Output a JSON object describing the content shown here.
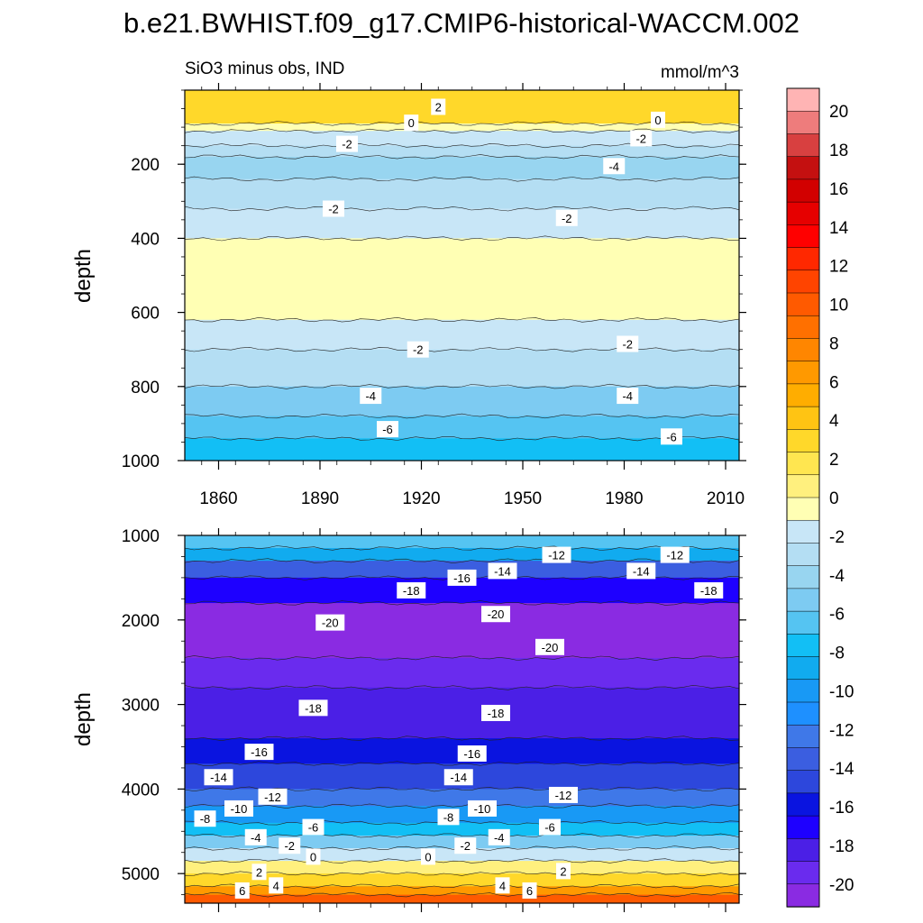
{
  "chart_data": {
    "type": "contour",
    "title": "b.e21.BWHIST.f09_g17.CMIP6-historical-WACCM.002",
    "subtitle_left": "SiO3 minus obs, IND",
    "subtitle_right": "mmol/m^3",
    "x": {
      "range": [
        1850,
        2014
      ],
      "tick_values": [
        1860,
        1890,
        1920,
        1950,
        1980,
        2010
      ],
      "tick_labels": [
        "1860",
        "1890",
        "1920",
        "1950",
        "1980",
        "2010"
      ]
    },
    "colorbar": {
      "levels": [
        -20,
        -18,
        -16,
        -14,
        -12,
        -10,
        -8,
        -6,
        -4,
        -2,
        0,
        2,
        4,
        6,
        8,
        10,
        12,
        14,
        16,
        18,
        20
      ],
      "labels": [
        "20",
        "18",
        "16",
        "14",
        "12",
        "10",
        "8",
        "6",
        "4",
        "2",
        "0",
        "-2",
        "-4",
        "-6",
        "-8",
        "-10",
        "-12",
        "-14",
        "-16",
        "-18",
        "-20"
      ],
      "colors": [
        "#8A2BE2",
        "#6A2BEE",
        "#4B1FE6",
        "#1E00FF",
        "#0A14E0",
        "#2D47DC",
        "#3B5EE0",
        "#3F78E8",
        "#1E90FF",
        "#1899F5",
        "#11ABEF",
        "#12BFF5",
        "#55C4F2",
        "#7DCBF2",
        "#98D5F0",
        "#B4DEF3",
        "#C8E6F7",
        "#FFFFB4",
        "#FFF07E",
        "#FFE650",
        "#FFD82A",
        "#FFC413",
        "#FFAD00",
        "#FF9900",
        "#FF8600",
        "#FF7000",
        "#FF5A00",
        "#FF4400",
        "#FF2800",
        "#FF0000",
        "#E60000",
        "#D20000",
        "#C41010",
        "#D84040",
        "#EE7C7C",
        "#FFB4B4"
      ]
    },
    "panels": [
      {
        "ylabel": "depth",
        "y_range": [
          0,
          1000
        ],
        "tick_values": [
          200,
          400,
          600,
          800,
          1000
        ],
        "tick_labels": [
          "200",
          "400",
          "600",
          "800",
          "1000"
        ],
        "bands": [
          {
            "top": 0,
            "bottom": 90,
            "value": 3
          },
          {
            "top": 90,
            "bottom": 110,
            "value": -0.5
          },
          {
            "top": 110,
            "bottom": 150,
            "value": -1.5
          },
          {
            "top": 150,
            "bottom": 180,
            "value": -2.5
          },
          {
            "top": 180,
            "bottom": 240,
            "value": -3.5
          },
          {
            "top": 240,
            "bottom": 320,
            "value": -2.5
          },
          {
            "top": 320,
            "bottom": 400,
            "value": -1.5
          },
          {
            "top": 400,
            "bottom": 620,
            "value": -0.5
          },
          {
            "top": 620,
            "bottom": 700,
            "value": -1.5
          },
          {
            "top": 700,
            "bottom": 800,
            "value": -2.5
          },
          {
            "top": 800,
            "bottom": 880,
            "value": -4.5
          },
          {
            "top": 880,
            "bottom": 940,
            "value": -6.5
          },
          {
            "top": 940,
            "bottom": 1000,
            "value": -7.5
          }
        ],
        "contour_labels": [
          {
            "text": "2",
            "x": 1925,
            "y": 45
          },
          {
            "text": "0",
            "x": 1917,
            "y": 88
          },
          {
            "text": "0",
            "x": 1990,
            "y": 80
          },
          {
            "text": "-2",
            "x": 1898,
            "y": 145
          },
          {
            "text": "-2",
            "x": 1985,
            "y": 130
          },
          {
            "text": "-4",
            "x": 1977,
            "y": 205
          },
          {
            "text": "-2",
            "x": 1894,
            "y": 320
          },
          {
            "text": "-2",
            "x": 1963,
            "y": 345
          },
          {
            "text": "-2",
            "x": 1919,
            "y": 700
          },
          {
            "text": "-2",
            "x": 1981,
            "y": 685
          },
          {
            "text": "-4",
            "x": 1905,
            "y": 825
          },
          {
            "text": "-4",
            "x": 1981,
            "y": 825
          },
          {
            "text": "-6",
            "x": 1910,
            "y": 915
          },
          {
            "text": "-6",
            "x": 1994,
            "y": 935
          }
        ]
      },
      {
        "ylabel": "depth",
        "y_range": [
          1000,
          5350
        ],
        "tick_values": [
          1000,
          2000,
          3000,
          4000,
          5000
        ],
        "tick_labels": [
          "1000",
          "2000",
          "3000",
          "4000",
          "5000"
        ],
        "bands": [
          {
            "top": 1000,
            "bottom": 1150,
            "value": -6.5
          },
          {
            "top": 1150,
            "bottom": 1300,
            "value": -8.5
          },
          {
            "top": 1300,
            "bottom": 1500,
            "value": -12.5
          },
          {
            "top": 1500,
            "bottom": 1800,
            "value": -16.5
          },
          {
            "top": 1800,
            "bottom": 2450,
            "value": -20.5
          },
          {
            "top": 2450,
            "bottom": 2800,
            "value": -18.5
          },
          {
            "top": 2800,
            "bottom": 3400,
            "value": -17.5
          },
          {
            "top": 3400,
            "bottom": 3700,
            "value": -15.5
          },
          {
            "top": 3700,
            "bottom": 4000,
            "value": -13.5
          },
          {
            "top": 4000,
            "bottom": 4200,
            "value": -11.5
          },
          {
            "top": 4200,
            "bottom": 4400,
            "value": -9.5
          },
          {
            "top": 4400,
            "bottom": 4550,
            "value": -7.5
          },
          {
            "top": 4550,
            "bottom": 4700,
            "value": -4.5
          },
          {
            "top": 4700,
            "bottom": 4850,
            "value": -1.5
          },
          {
            "top": 4850,
            "bottom": 5000,
            "value": 1
          },
          {
            "top": 5000,
            "bottom": 5150,
            "value": 3
          },
          {
            "top": 5150,
            "bottom": 5250,
            "value": 6
          },
          {
            "top": 5250,
            "bottom": 5350,
            "value": 9
          }
        ],
        "contour_labels": [
          {
            "text": "-12",
            "x": 1960,
            "y": 1230
          },
          {
            "text": "-12",
            "x": 1995,
            "y": 1230
          },
          {
            "text": "-14",
            "x": 1944,
            "y": 1420
          },
          {
            "text": "-14",
            "x": 1985,
            "y": 1420
          },
          {
            "text": "-16",
            "x": 1932,
            "y": 1500
          },
          {
            "text": "-18",
            "x": 1917,
            "y": 1650
          },
          {
            "text": "-18",
            "x": 2005,
            "y": 1650
          },
          {
            "text": "-20",
            "x": 1893,
            "y": 2030
          },
          {
            "text": "-20",
            "x": 1942,
            "y": 1930
          },
          {
            "text": "-20",
            "x": 1958,
            "y": 2320
          },
          {
            "text": "-18",
            "x": 1888,
            "y": 3040
          },
          {
            "text": "-18",
            "x": 1942,
            "y": 3100
          },
          {
            "text": "-16",
            "x": 1872,
            "y": 3560
          },
          {
            "text": "-16",
            "x": 1935,
            "y": 3580
          },
          {
            "text": "-14",
            "x": 1860,
            "y": 3860
          },
          {
            "text": "-14",
            "x": 1931,
            "y": 3860
          },
          {
            "text": "-12",
            "x": 1876,
            "y": 4090
          },
          {
            "text": "-12",
            "x": 1962,
            "y": 4070
          },
          {
            "text": "-10",
            "x": 1866,
            "y": 4230
          },
          {
            "text": "-10",
            "x": 1938,
            "y": 4230
          },
          {
            "text": "-8",
            "x": 1856,
            "y": 4350
          },
          {
            "text": "-8",
            "x": 1928,
            "y": 4330
          },
          {
            "text": "-6",
            "x": 1888,
            "y": 4450
          },
          {
            "text": "-6",
            "x": 1958,
            "y": 4450
          },
          {
            "text": "-4",
            "x": 1871,
            "y": 4570
          },
          {
            "text": "-4",
            "x": 1943,
            "y": 4570
          },
          {
            "text": "-2",
            "x": 1881,
            "y": 4670
          },
          {
            "text": "-2",
            "x": 1933,
            "y": 4670
          },
          {
            "text": "0",
            "x": 1888,
            "y": 4800
          },
          {
            "text": "0",
            "x": 1922,
            "y": 4800
          },
          {
            "text": "2",
            "x": 1872,
            "y": 4980
          },
          {
            "text": "2",
            "x": 1962,
            "y": 4970
          },
          {
            "text": "4",
            "x": 1877,
            "y": 5140
          },
          {
            "text": "4",
            "x": 1944,
            "y": 5140
          },
          {
            "text": "6",
            "x": 1867,
            "y": 5200
          },
          {
            "text": "6",
            "x": 1952,
            "y": 5200
          }
        ]
      }
    ]
  }
}
